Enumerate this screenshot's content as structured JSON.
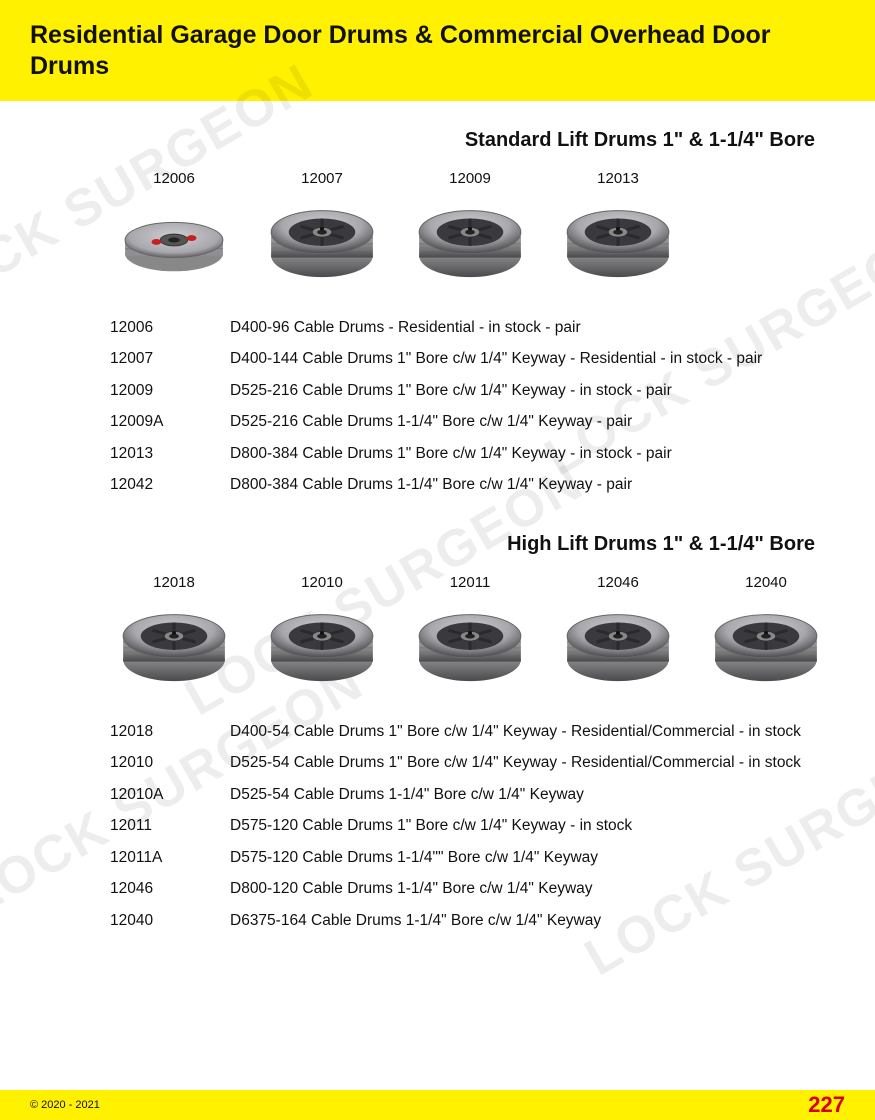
{
  "header": {
    "title": "Residential Garage Door Drums & Commercial Overhead Door Drums"
  },
  "colors": {
    "yellow": "#fff100",
    "red": "#d80000",
    "text": "#111111",
    "drum_metal": "#a8a8ac",
    "drum_dark": "#4a4a4e",
    "drum_light": "#cfcfd3",
    "watermark": "rgba(0,0,0,0.07)"
  },
  "section1": {
    "title": "Standard Lift Drums 1\" & 1-1/4\" Bore",
    "drums": [
      {
        "label": "12006"
      },
      {
        "label": "12007"
      },
      {
        "label": "12009"
      },
      {
        "label": "12013"
      }
    ],
    "specs": [
      {
        "code": "12006",
        "desc": "D400-96 Cable Drums - Residential - in stock - pair"
      },
      {
        "code": "12007",
        "desc": "D400-144 Cable Drums 1\" Bore c/w 1/4\" Keyway - Residential - in stock - pair"
      },
      {
        "code": "12009",
        "desc": "D525-216 Cable Drums 1\" Bore c/w 1/4\" Keyway - in stock - pair"
      },
      {
        "code": "12009A",
        "desc": "D525-216 Cable Drums 1-1/4\" Bore c/w 1/4\" Keyway - pair"
      },
      {
        "code": "12013",
        "desc": "D800-384 Cable Drums 1\" Bore c/w 1/4\" Keyway - in stock - pair"
      },
      {
        "code": "12042",
        "desc": "D800-384 Cable Drums 1-1/4\" Bore c/w 1/4\" Keyway  - pair"
      }
    ]
  },
  "section2": {
    "title": "High Lift Drums 1\" & 1-1/4\" Bore",
    "drums": [
      {
        "label": "12018"
      },
      {
        "label": "12010"
      },
      {
        "label": "12011"
      },
      {
        "label": "12046"
      },
      {
        "label": "12040"
      }
    ],
    "specs": [
      {
        "code": "12018",
        "desc": "D400-54 Cable Drums 1\" Bore c/w 1/4\" Keyway - Residential/Commercial - in stock"
      },
      {
        "code": "12010",
        "desc": "D525-54 Cable Drums 1\" Bore c/w 1/4\" Keyway - Residential/Commercial - in stock"
      },
      {
        "code": "12010A",
        "desc": "D525-54 Cable Drums 1-1/4\" Bore c/w 1/4\" Keyway"
      },
      {
        "code": "12011",
        "desc": "D575-120 Cable Drums 1\" Bore c/w 1/4\" Keyway - in stock"
      },
      {
        "code": "12011A",
        "desc": "D575-120 Cable Drums 1-1/4\"\" Bore c/w 1/4\" Keyway"
      },
      {
        "code": "12046",
        "desc": "D800-120 Cable Drums 1-1/4\" Bore c/w 1/4\" Keyway"
      },
      {
        "code": "12040",
        "desc": "D6375-164 Cable Drums 1-1/4\" Bore c/w 1/4\" Keyway"
      }
    ]
  },
  "footer": {
    "copyright": "© 2020 - 2021",
    "page": "227"
  },
  "watermark_text": "LOCK SURGEON"
}
